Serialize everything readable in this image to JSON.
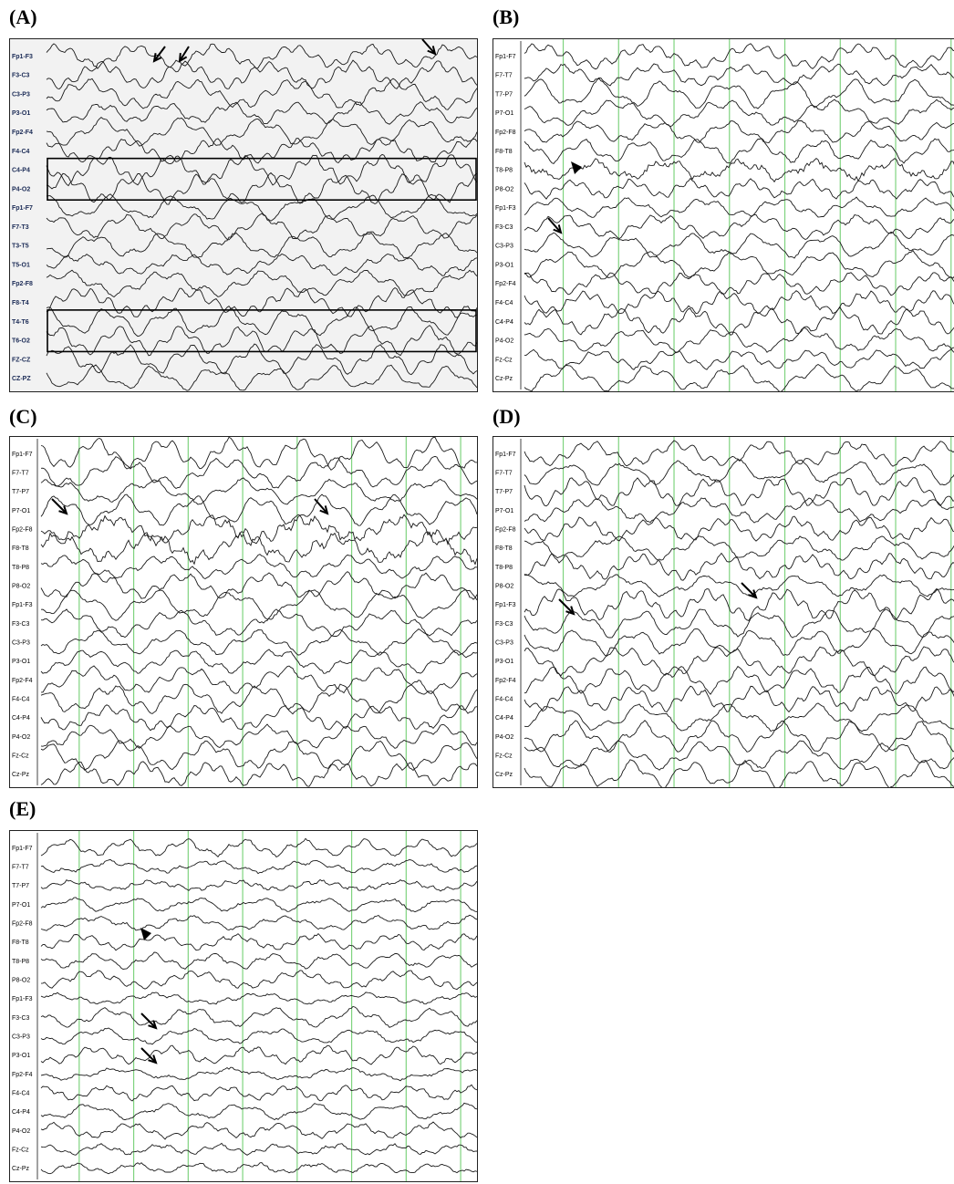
{
  "figure": {
    "panels": [
      {
        "id": "A",
        "label": "(A)",
        "style": "a",
        "channels": [
          "Fp1-F3",
          "F3-C3",
          "C3-P3",
          "P3-O1",
          "Fp2-F4",
          "F4-C4",
          "C4-P4",
          "P4-O2",
          "Fp1-F7",
          "F7-T3",
          "T3-T5",
          "T5-O1",
          "Fp2-F8",
          "F8-T4",
          "T4-T6",
          "T6-O2",
          "FZ-CZ",
          "CZ-PZ"
        ],
        "green_lines": false,
        "highlight_boxes": [
          {
            "from_channel": 6,
            "to_channel": 7
          },
          {
            "from_channel": 14,
            "to_channel": 15
          }
        ],
        "arrows": 3,
        "arrowheads": 0
      },
      {
        "id": "B",
        "label": "(B)",
        "style": "b",
        "channels": [
          "Fp1-F7",
          "F7-T7",
          "T7-P7",
          "P7-O1",
          "Fp2-F8",
          "F8-T8",
          "T8-P8",
          "P8-O2",
          "Fp1-F3",
          "F3-C3",
          "C3-P3",
          "P3-O1",
          "Fp2-F4",
          "F4-C4",
          "C4-P4",
          "P4-O2",
          "Fz-Cz",
          "Cz-Pz"
        ],
        "green_lines": true,
        "arrows": 1,
        "arrowheads": 1
      },
      {
        "id": "C",
        "label": "(C)",
        "style": "b",
        "channels": [
          "Fp1-F7",
          "F7-T7",
          "T7-P7",
          "P7-O1",
          "Fp2-F8",
          "F8-T8",
          "T8-P8",
          "P8-O2",
          "Fp1-F3",
          "F3-C3",
          "C3-P3",
          "P3-O1",
          "Fp2-F4",
          "F4-C4",
          "C4-P4",
          "P4-O2",
          "Fz-Cz",
          "Cz-Pz"
        ],
        "green_lines": true,
        "arrows": 2,
        "arrowheads": 0
      },
      {
        "id": "D",
        "label": "(D)",
        "style": "b",
        "channels": [
          "Fp1-F7",
          "F7-T7",
          "T7-P7",
          "P7-O1",
          "Fp2-F8",
          "F8-T8",
          "T8-P8",
          "P8-O2",
          "Fp1-F3",
          "F3-C3",
          "C3-P3",
          "P3-O1",
          "Fp2-F4",
          "F4-C4",
          "C4-P4",
          "P4-O2",
          "Fz-Cz",
          "Cz-Pz"
        ],
        "green_lines": true,
        "arrows": 2,
        "arrowheads": 0
      },
      {
        "id": "E",
        "label": "(E)",
        "style": "b",
        "channels": [
          "Fp1-F7",
          "F7-T7",
          "T7-P7",
          "P7-O1",
          "Fp2-F8",
          "F8-T8",
          "T8-P8",
          "P8-O2",
          "Fp1-F3",
          "F3-C3",
          "C3-P3",
          "P3-O1",
          "Fp2-F4",
          "F4-C4",
          "C4-P4",
          "P4-O2",
          "Fz-Cz",
          "Cz-Pz"
        ],
        "green_lines": true,
        "arrows": 2,
        "arrowheads": 1
      }
    ],
    "colors": {
      "trace": "#1a1a1a",
      "grid_line": "#7fd37f",
      "label_a": "#1a2a55",
      "panel_a_bg": "#f2f2f2"
    }
  }
}
